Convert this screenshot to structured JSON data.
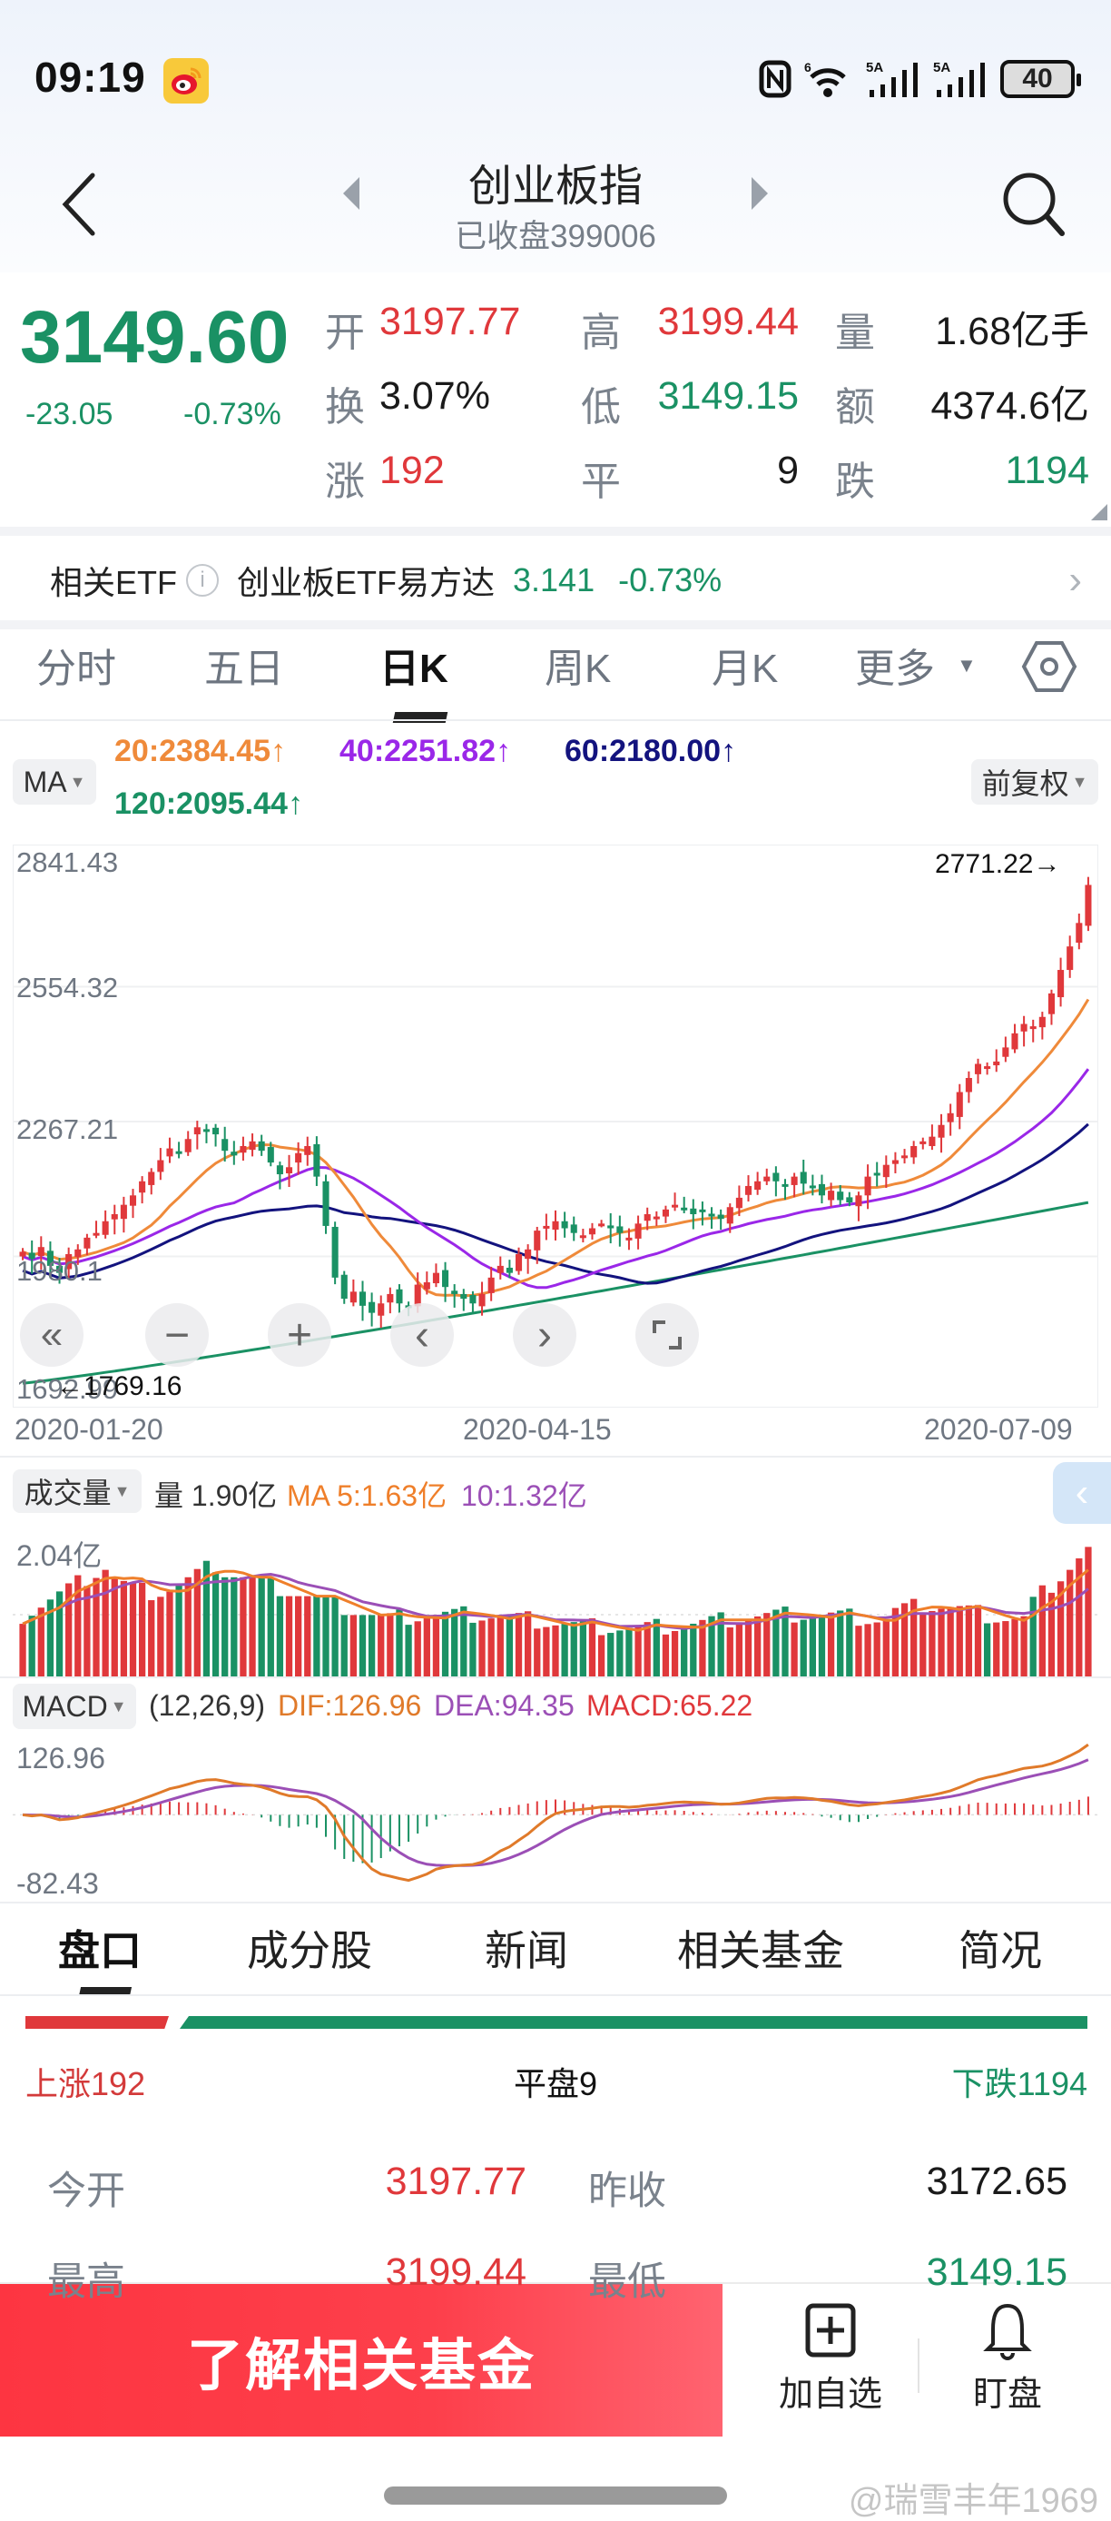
{
  "status_bar": {
    "time": "09:19",
    "battery": "40",
    "signal1": "5A",
    "signal2": "5A",
    "wifi_badge": "6"
  },
  "header": {
    "title": "创业板指",
    "subtitle": "已收盘399006"
  },
  "quote": {
    "price": "3149.60",
    "change": "-23.05",
    "change_pct": "-0.73%",
    "fields": [
      {
        "label": "开",
        "value": "3197.77",
        "color": "red"
      },
      {
        "label": "高",
        "value": "3199.44",
        "color": "red"
      },
      {
        "label": "量",
        "value": "1.68亿手",
        "color": "dark"
      },
      {
        "label": "换",
        "value": "3.07%",
        "color": "dark"
      },
      {
        "label": "低",
        "value": "3149.15",
        "color": "green"
      },
      {
        "label": "额",
        "value": "4374.6亿",
        "color": "dark"
      },
      {
        "label": "涨",
        "value": "192",
        "color": "red"
      },
      {
        "label": "平",
        "value": "9",
        "color": "dark"
      },
      {
        "label": "跌",
        "value": "1194",
        "color": "green"
      }
    ]
  },
  "etf": {
    "label": "相关ETF",
    "name": "创业板ETF易方达",
    "price": "3.141",
    "change_pct": "-0.73%"
  },
  "chart_tabs": [
    {
      "label": "分时",
      "active": false
    },
    {
      "label": "五日",
      "active": false
    },
    {
      "label": "日K",
      "active": true
    },
    {
      "label": "周K",
      "active": false
    },
    {
      "label": "月K",
      "active": false
    },
    {
      "label": "更多",
      "active": false
    }
  ],
  "ma_legend": {
    "selector": "MA",
    "adjust": "前复权",
    "ma20": "20:2384.45↑",
    "ma40": "40:2251.82↑",
    "ma60": "60:2180.00↑",
    "ma120": "120:2095.44↑"
  },
  "colors": {
    "up": "#e0383b",
    "down": "#1a9164",
    "ma20": "#ef8a3a",
    "ma40": "#9a27e8",
    "ma60": "#13137e",
    "ma120": "#1a9164",
    "vol_ma5": "#ef7f2a",
    "vol_ma10": "#9b4fb6"
  },
  "chart_data": [
    {
      "type": "candlestick",
      "title": "创业板指 日K",
      "xlabel": "",
      "ylabel": "",
      "x_ticks": [
        "2020-01-20",
        "2020-04-15",
        "2020-07-09"
      ],
      "y_ticks": [
        2841.43,
        2554.32,
        2267.21,
        1980.1,
        1692.99
      ],
      "ylim": [
        1692.99,
        2841.43
      ],
      "max_marker": "2771.22→",
      "min_marker": "←1769.16",
      "grid": true,
      "series_ma": [
        {
          "name": "MA20",
          "last": 2384.45
        },
        {
          "name": "MA40",
          "last": 2251.82
        },
        {
          "name": "MA60",
          "last": 2180.0
        },
        {
          "name": "MA120",
          "last": 2095.44
        }
      ],
      "closes": [
        1990,
        1975,
        2000,
        1960,
        1945,
        1985,
        1995,
        2020,
        2030,
        2055,
        2070,
        2090,
        2110,
        2140,
        2160,
        2185,
        2210,
        2200,
        2230,
        2255,
        2250,
        2240,
        2205,
        2195,
        2215,
        2225,
        2205,
        2180,
        2155,
        2170,
        2200,
        2215,
        2150,
        2045,
        1935,
        1890,
        1905,
        1875,
        1860,
        1880,
        1900,
        1880,
        1870,
        1920,
        1925,
        1945,
        1915,
        1900,
        1890,
        1880,
        1900,
        1935,
        1960,
        1945,
        1985,
        1995,
        2035,
        2045,
        2055,
        2040,
        2030,
        2025,
        2040,
        2050,
        2040,
        2030,
        2020,
        2050,
        2070,
        2065,
        2080,
        2090,
        2080,
        2070,
        2075,
        2065,
        2060,
        2085,
        2105,
        2130,
        2140,
        2150,
        2140,
        2130,
        2150,
        2135,
        2130,
        2110,
        2120,
        2100,
        2095,
        2110,
        2150,
        2155,
        2175,
        2185,
        2195,
        2215,
        2225,
        2235,
        2260,
        2285,
        2330,
        2360,
        2390,
        2385,
        2395,
        2425,
        2455,
        2475,
        2470,
        2490,
        2540,
        2590,
        2640,
        2690,
        2771
      ]
    },
    {
      "type": "bar",
      "title": "成交量",
      "y_ticks": [
        "2.04亿"
      ],
      "current": "量 1.90亿",
      "ma5": "MA 5:1.63亿",
      "ma10": "10:1.32亿"
    },
    {
      "type": "line",
      "title": "MACD",
      "params": "(12,26,9)",
      "dif": "DIF:126.96",
      "dea": "DEA:94.35",
      "macd": "MACD:65.22",
      "y_ticks": [
        126.96,
        -82.43
      ],
      "ylim": [
        -82.43,
        126.96
      ]
    }
  ],
  "lower_tabs": [
    {
      "label": "盘口",
      "active": true
    },
    {
      "label": "成分股",
      "active": false
    },
    {
      "label": "新闻",
      "active": false
    },
    {
      "label": "相关基金",
      "active": false
    },
    {
      "label": "简况",
      "active": false
    }
  ],
  "breadth": {
    "up": "上涨192",
    "flat": "平盘9",
    "down": "下跌1194"
  },
  "details": [
    {
      "l1": "今开",
      "v1": "3197.77",
      "l2": "昨收",
      "v2": "3172.65"
    },
    {
      "l1": "最高",
      "v1": "3199.44",
      "l2": "最低",
      "v2": "3149.15"
    }
  ],
  "bottom_bar": {
    "cta": "了解相关基金",
    "add_watch": "加自选",
    "alert": "盯盘"
  },
  "watermark": "@瑞雪丰年1969"
}
